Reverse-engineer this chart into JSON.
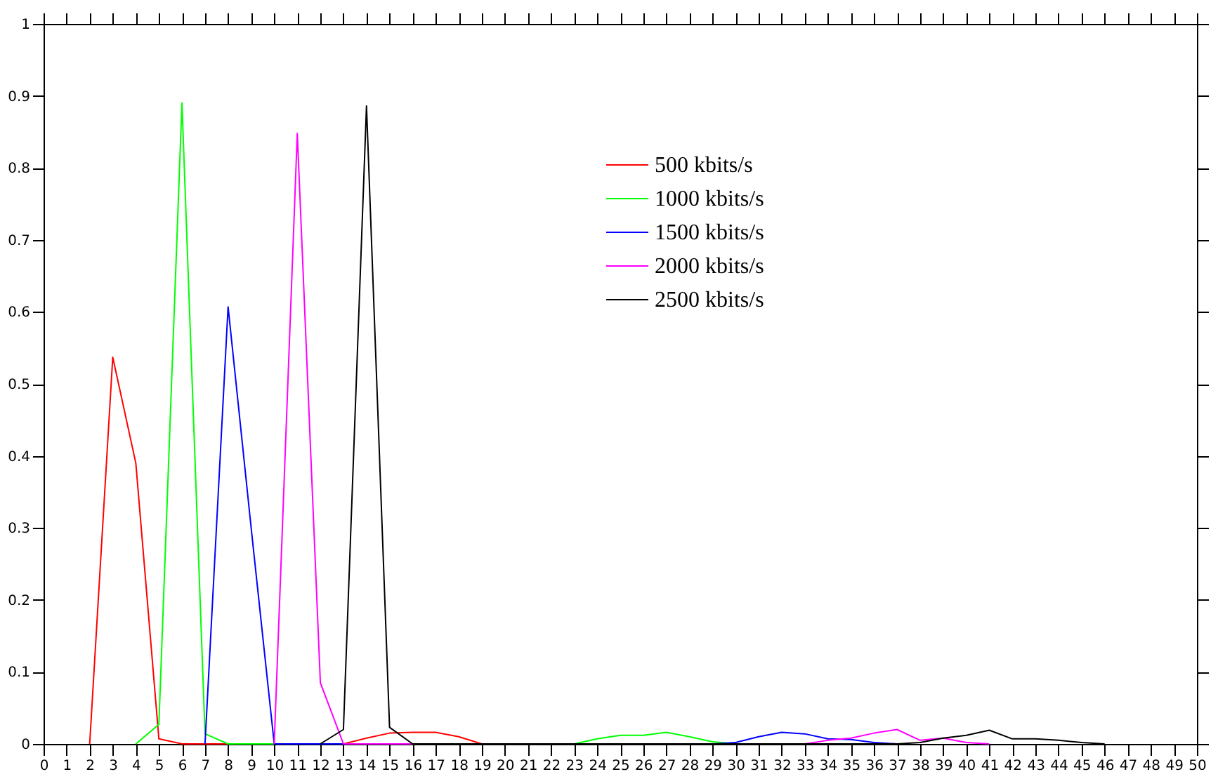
{
  "chart_data": {
    "type": "line",
    "xlim": [
      0,
      50
    ],
    "xticks": [
      0,
      1,
      2,
      3,
      4,
      5,
      6,
      7,
      8,
      9,
      10,
      11,
      12,
      13,
      14,
      15,
      16,
      17,
      18,
      19,
      20,
      21,
      22,
      23,
      24,
      25,
      26,
      27,
      28,
      29,
      30,
      31,
      32,
      33,
      34,
      35,
      36,
      37,
      38,
      39,
      40,
      41,
      42,
      43,
      44,
      45,
      46,
      47,
      48,
      49,
      50
    ],
    "ylim": [
      0,
      1
    ],
    "yticks": [
      {
        "value": 0,
        "label": "0"
      },
      0.1,
      0.2,
      0.3,
      0.4,
      0.5,
      0.6,
      0.7,
      0.8,
      0.9,
      {
        "value": 1,
        "label": "1"
      }
    ],
    "grid": false,
    "legend": "top",
    "marker": "none",
    "line_style": "solid",
    "series": [
      {
        "name": "500   kbits/s",
        "color": "#ff0000",
        "x": [
          2,
          3,
          4,
          5,
          6,
          7,
          8,
          9,
          10,
          11,
          12,
          13,
          14,
          15,
          16,
          17,
          18,
          19,
          20
        ],
        "values": [
          0,
          0.537,
          0.39,
          0.007,
          0,
          0,
          0,
          0,
          0,
          0,
          0,
          0,
          0.008,
          0.015,
          0.016,
          0.016,
          0.01,
          0,
          0
        ]
      },
      {
        "name": "1000 kbits/s",
        "color": "#00ff00",
        "x": [
          4,
          5,
          6,
          7,
          8,
          9,
          10,
          11,
          12,
          13,
          14,
          15,
          16,
          17,
          18,
          19,
          20,
          21,
          22,
          23,
          24,
          25,
          26,
          27,
          28,
          29,
          30
        ],
        "values": [
          0,
          0.027,
          0.89,
          0.014,
          0,
          0,
          0,
          0,
          0,
          0,
          0,
          0,
          0,
          0,
          0,
          0,
          0,
          0,
          0,
          0,
          0.007,
          0.012,
          0.012,
          0.016,
          0.01,
          0.003,
          0
        ]
      },
      {
        "name": "1500 kbits/s",
        "color": "#0000ff",
        "x": [
          7,
          8,
          9,
          10,
          11,
          12,
          13,
          14,
          15,
          16,
          17,
          18,
          19,
          20,
          21,
          22,
          23,
          24,
          25,
          26,
          27,
          28,
          29,
          30,
          31,
          32,
          33,
          34,
          35,
          36,
          37
        ],
        "values": [
          0,
          0.607,
          0.3,
          0,
          0,
          0,
          0,
          0,
          0,
          0,
          0,
          0,
          0,
          0,
          0,
          0,
          0,
          0,
          0,
          0,
          0,
          0,
          0,
          0.002,
          0.01,
          0.016,
          0.014,
          0.007,
          0.006,
          0.002,
          0
        ]
      },
      {
        "name": "2000 kbits/s",
        "color": "#ff00ff",
        "x": [
          10,
          11,
          12,
          13,
          14,
          15,
          16,
          17,
          18,
          19,
          20,
          21,
          22,
          23,
          24,
          25,
          26,
          27,
          28,
          29,
          30,
          31,
          32,
          33,
          34,
          35,
          36,
          37,
          38,
          39,
          40,
          41
        ],
        "values": [
          0,
          0.848,
          0.085,
          0,
          0,
          0,
          0,
          0,
          0,
          0,
          0,
          0,
          0,
          0,
          0,
          0,
          0,
          0,
          0,
          0,
          0,
          0,
          0,
          0,
          0.005,
          0.008,
          0.015,
          0.02,
          0.005,
          0.008,
          0.002,
          0
        ]
      },
      {
        "name": "2500 kbits/s",
        "color": "#000000",
        "x": [
          12,
          13,
          14,
          15,
          16,
          17,
          18,
          19,
          20,
          21,
          22,
          23,
          24,
          25,
          26,
          27,
          28,
          29,
          30,
          31,
          32,
          33,
          34,
          35,
          36,
          37,
          38,
          39,
          40,
          41,
          42,
          43,
          44,
          45,
          46
        ],
        "values": [
          0,
          0.02,
          0.886,
          0.023,
          0,
          0,
          0,
          0,
          0,
          0,
          0,
          0,
          0,
          0,
          0,
          0,
          0,
          0,
          0,
          0,
          0,
          0,
          0,
          0,
          0,
          0,
          0.002,
          0.008,
          0.012,
          0.019,
          0.007,
          0.007,
          0.005,
          0.002,
          0
        ]
      }
    ]
  }
}
